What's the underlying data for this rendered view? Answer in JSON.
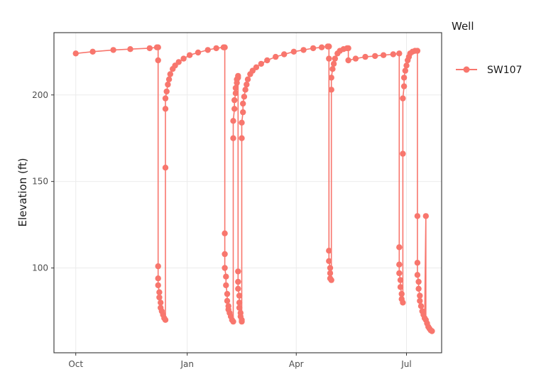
{
  "chart_data": {
    "type": "line",
    "title": "",
    "xlabel": "",
    "ylabel": "Elevation (ft)",
    "x_ticks": [
      {
        "label": "Oct",
        "date": "2020-10-01"
      },
      {
        "label": "Jan",
        "date": "2021-01-01"
      },
      {
        "label": "Apr",
        "date": "2021-04-01"
      },
      {
        "label": "Jul",
        "date": "2021-07-01"
      }
    ],
    "y_ticks": [
      100,
      150,
      200
    ],
    "xlim": [
      "2020-09-13",
      "2021-07-30"
    ],
    "ylim": [
      51,
      236
    ],
    "grid": true,
    "legend": {
      "title": "Well",
      "position": "right"
    },
    "colors": {
      "SW107": "#f8766d",
      "panel_border": "#333333",
      "grid": "#ebebeb"
    },
    "series": [
      {
        "name": "SW107",
        "points": [
          [
            "2020-10-01",
            224
          ],
          [
            "2020-10-15",
            225
          ],
          [
            "2020-11-01",
            226
          ],
          [
            "2020-11-15",
            226.5
          ],
          [
            "2020-12-01",
            227
          ],
          [
            "2020-12-07",
            227.5
          ],
          [
            "2020-12-08",
            227.5
          ],
          [
            "2020-12-08",
            220
          ],
          [
            "2020-12-08",
            101
          ],
          [
            "2020-12-08",
            94
          ],
          [
            "2020-12-08",
            90
          ],
          [
            "2020-12-09",
            86
          ],
          [
            "2020-12-09",
            83
          ],
          [
            "2020-12-10",
            80
          ],
          [
            "2020-12-10",
            77
          ],
          [
            "2020-12-11",
            75
          ],
          [
            "2020-12-12",
            73
          ],
          [
            "2020-12-13",
            71
          ],
          [
            "2020-12-14",
            70
          ],
          [
            "2020-12-14",
            158
          ],
          [
            "2020-12-14",
            192
          ],
          [
            "2020-12-14",
            198
          ],
          [
            "2020-12-15",
            202
          ],
          [
            "2020-12-16",
            206
          ],
          [
            "2020-12-17",
            209
          ],
          [
            "2020-12-18",
            212
          ],
          [
            "2020-12-20",
            215
          ],
          [
            "2020-12-22",
            217
          ],
          [
            "2020-12-25",
            219
          ],
          [
            "2020-12-29",
            221
          ],
          [
            "2021-01-03",
            223
          ],
          [
            "2021-01-10",
            224.5
          ],
          [
            "2021-01-18",
            226
          ],
          [
            "2021-01-25",
            227
          ],
          [
            "2021-01-31",
            227.5
          ],
          [
            "2021-02-01",
            227.5
          ],
          [
            "2021-02-01",
            120
          ],
          [
            "2021-02-01",
            108
          ],
          [
            "2021-02-01",
            100
          ],
          [
            "2021-02-02",
            95
          ],
          [
            "2021-02-02",
            90
          ],
          [
            "2021-02-03",
            85
          ],
          [
            "2021-02-03",
            81
          ],
          [
            "2021-02-04",
            78
          ],
          [
            "2021-02-04",
            76
          ],
          [
            "2021-02-05",
            74
          ],
          [
            "2021-02-06",
            72
          ],
          [
            "2021-02-07",
            70
          ],
          [
            "2021-02-08",
            69
          ],
          [
            "2021-02-08",
            175
          ],
          [
            "2021-02-08",
            185
          ],
          [
            "2021-02-09",
            192
          ],
          [
            "2021-02-09",
            197
          ],
          [
            "2021-02-10",
            201
          ],
          [
            "2021-02-10",
            204
          ],
          [
            "2021-02-11",
            207
          ],
          [
            "2021-02-11",
            209
          ],
          [
            "2021-02-12",
            210
          ],
          [
            "2021-02-12",
            211
          ],
          [
            "2021-02-12",
            98
          ],
          [
            "2021-02-12",
            92
          ],
          [
            "2021-02-12",
            88
          ],
          [
            "2021-02-13",
            84
          ],
          [
            "2021-02-13",
            80
          ],
          [
            "2021-02-13",
            77
          ],
          [
            "2021-02-14",
            74
          ],
          [
            "2021-02-14",
            72
          ],
          [
            "2021-02-15",
            70
          ],
          [
            "2021-02-15",
            69
          ],
          [
            "2021-02-15",
            175
          ],
          [
            "2021-02-15",
            184
          ],
          [
            "2021-02-16",
            190
          ],
          [
            "2021-02-16",
            195
          ],
          [
            "2021-02-17",
            199
          ],
          [
            "2021-02-18",
            203
          ],
          [
            "2021-02-19",
            206
          ],
          [
            "2021-02-20",
            209
          ],
          [
            "2021-02-22",
            212
          ],
          [
            "2021-02-24",
            214
          ],
          [
            "2021-02-27",
            216
          ],
          [
            "2021-03-03",
            218
          ],
          [
            "2021-03-08",
            220
          ],
          [
            "2021-03-15",
            222
          ],
          [
            "2021-03-22",
            223.5
          ],
          [
            "2021-03-30",
            225
          ],
          [
            "2021-04-07",
            226
          ],
          [
            "2021-04-15",
            227
          ],
          [
            "2021-04-22",
            227.5
          ],
          [
            "2021-04-27",
            228
          ],
          [
            "2021-04-28",
            228
          ],
          [
            "2021-04-28",
            221
          ],
          [
            "2021-04-28",
            110
          ],
          [
            "2021-04-28",
            104
          ],
          [
            "2021-04-29",
            100
          ],
          [
            "2021-04-29",
            97
          ],
          [
            "2021-04-29",
            94
          ],
          [
            "2021-04-30",
            93
          ],
          [
            "2021-04-30",
            203
          ],
          [
            "2021-04-30",
            210
          ],
          [
            "2021-05-01",
            215
          ],
          [
            "2021-05-02",
            218
          ],
          [
            "2021-05-03",
            221
          ],
          [
            "2021-05-05",
            224
          ],
          [
            "2021-05-07",
            225.5
          ],
          [
            "2021-05-10",
            226.5
          ],
          [
            "2021-05-13",
            227
          ],
          [
            "2021-05-14",
            227
          ],
          [
            "2021-05-14",
            220
          ],
          [
            "2021-05-20",
            221
          ],
          [
            "2021-05-28",
            222
          ],
          [
            "2021-06-05",
            222.5
          ],
          [
            "2021-06-12",
            223
          ],
          [
            "2021-06-20",
            223.5
          ],
          [
            "2021-06-25",
            224
          ],
          [
            "2021-06-25",
            112
          ],
          [
            "2021-06-25",
            102
          ],
          [
            "2021-06-25",
            97
          ],
          [
            "2021-06-26",
            93
          ],
          [
            "2021-06-26",
            89
          ],
          [
            "2021-06-27",
            85
          ],
          [
            "2021-06-27",
            82
          ],
          [
            "2021-06-28",
            80
          ],
          [
            "2021-06-28",
            166
          ],
          [
            "2021-06-28",
            198
          ],
          [
            "2021-06-29",
            205
          ],
          [
            "2021-06-29",
            210
          ],
          [
            "2021-06-30",
            214
          ],
          [
            "2021-07-01",
            217
          ],
          [
            "2021-07-02",
            220
          ],
          [
            "2021-07-03",
            222
          ],
          [
            "2021-07-04",
            224
          ],
          [
            "2021-07-06",
            225
          ],
          [
            "2021-07-08",
            225.5
          ],
          [
            "2021-07-10",
            225.5
          ],
          [
            "2021-07-10",
            130
          ],
          [
            "2021-07-10",
            103
          ],
          [
            "2021-07-10",
            96
          ],
          [
            "2021-07-11",
            92
          ],
          [
            "2021-07-11",
            88
          ],
          [
            "2021-07-12",
            84
          ],
          [
            "2021-07-12",
            81
          ],
          [
            "2021-07-13",
            78
          ],
          [
            "2021-07-14",
            75
          ],
          [
            "2021-07-15",
            73
          ],
          [
            "2021-07-16",
            71
          ],
          [
            "2021-07-17",
            130
          ],
          [
            "2021-07-17",
            70
          ],
          [
            "2021-07-18",
            68
          ],
          [
            "2021-07-19",
            66
          ],
          [
            "2021-07-20",
            65
          ],
          [
            "2021-07-21",
            64
          ],
          [
            "2021-07-22",
            63.5
          ]
        ]
      }
    ]
  }
}
